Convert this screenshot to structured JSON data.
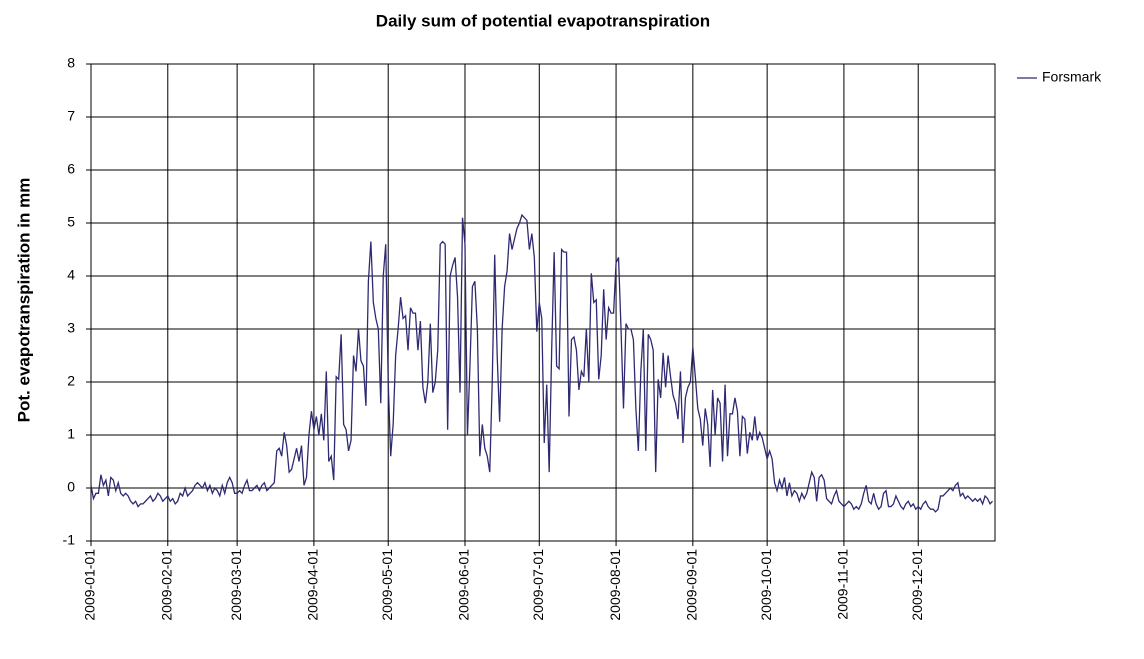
{
  "chart_data": {
    "type": "line",
    "title": "Daily sum of potential evapotranspiration",
    "y_label": "Pot. evapotranspiration in mm",
    "legend": "top-right",
    "grid": true,
    "xlim": [
      "2009-01-01",
      "2010-01-01"
    ],
    "xticks": [
      "2009-01-01",
      "2009-02-01",
      "2009-03-01",
      "2009-04-01",
      "2009-05-01",
      "2009-06-01",
      "2009-07-01",
      "2009-08-01",
      "2009-09-01",
      "2009-10-01",
      "2009-11-01",
      "2009-12-01"
    ],
    "ylim": [
      -1,
      8
    ],
    "yticks": [
      -1,
      0,
      1,
      2,
      3,
      4,
      5,
      6,
      7,
      8
    ],
    "x": [
      "2009-01-01",
      "2009-01-02",
      "2009-01-03",
      "2009-01-04",
      "2009-01-05",
      "2009-01-06",
      "2009-01-07",
      "2009-01-08",
      "2009-01-09",
      "2009-01-10",
      "2009-01-11",
      "2009-01-12",
      "2009-01-13",
      "2009-01-14",
      "2009-01-15",
      "2009-01-16",
      "2009-01-17",
      "2009-01-18",
      "2009-01-19",
      "2009-01-20",
      "2009-01-21",
      "2009-01-22",
      "2009-01-23",
      "2009-01-24",
      "2009-01-25",
      "2009-01-26",
      "2009-01-27",
      "2009-01-28",
      "2009-01-29",
      "2009-01-30",
      "2009-01-31",
      "2009-02-01",
      "2009-02-02",
      "2009-02-03",
      "2009-02-04",
      "2009-02-05",
      "2009-02-06",
      "2009-02-07",
      "2009-02-08",
      "2009-02-09",
      "2009-02-10",
      "2009-02-11",
      "2009-02-12",
      "2009-02-13",
      "2009-02-14",
      "2009-02-15",
      "2009-02-16",
      "2009-02-17",
      "2009-02-18",
      "2009-02-19",
      "2009-02-20",
      "2009-02-21",
      "2009-02-22",
      "2009-02-23",
      "2009-02-24",
      "2009-02-25",
      "2009-02-26",
      "2009-02-27",
      "2009-02-28",
      "2009-03-01",
      "2009-03-02",
      "2009-03-03",
      "2009-03-04",
      "2009-03-05",
      "2009-03-06",
      "2009-03-07",
      "2009-03-08",
      "2009-03-09",
      "2009-03-10",
      "2009-03-11",
      "2009-03-12",
      "2009-03-13",
      "2009-03-14",
      "2009-03-15",
      "2009-03-16",
      "2009-03-17",
      "2009-03-18",
      "2009-03-19",
      "2009-03-20",
      "2009-03-21",
      "2009-03-22",
      "2009-03-23",
      "2009-03-24",
      "2009-03-25",
      "2009-03-26",
      "2009-03-27",
      "2009-03-28",
      "2009-03-29",
      "2009-03-30",
      "2009-03-31",
      "2009-04-01",
      "2009-04-02",
      "2009-04-03",
      "2009-04-04",
      "2009-04-05",
      "2009-04-06",
      "2009-04-07",
      "2009-04-08",
      "2009-04-09",
      "2009-04-10",
      "2009-04-11",
      "2009-04-12",
      "2009-04-13",
      "2009-04-14",
      "2009-04-15",
      "2009-04-16",
      "2009-04-17",
      "2009-04-18",
      "2009-04-19",
      "2009-04-20",
      "2009-04-21",
      "2009-04-22",
      "2009-04-23",
      "2009-04-24",
      "2009-04-25",
      "2009-04-26",
      "2009-04-27",
      "2009-04-28",
      "2009-04-29",
      "2009-04-30",
      "2009-05-01",
      "2009-05-02",
      "2009-05-03",
      "2009-05-04",
      "2009-05-05",
      "2009-05-06",
      "2009-05-07",
      "2009-05-08",
      "2009-05-09",
      "2009-05-10",
      "2009-05-11",
      "2009-05-12",
      "2009-05-13",
      "2009-05-14",
      "2009-05-15",
      "2009-05-16",
      "2009-05-17",
      "2009-05-18",
      "2009-05-19",
      "2009-05-20",
      "2009-05-21",
      "2009-05-22",
      "2009-05-23",
      "2009-05-24",
      "2009-05-25",
      "2009-05-26",
      "2009-05-27",
      "2009-05-28",
      "2009-05-29",
      "2009-05-30",
      "2009-05-31",
      "2009-06-01",
      "2009-06-02",
      "2009-06-03",
      "2009-06-04",
      "2009-06-05",
      "2009-06-06",
      "2009-06-07",
      "2009-06-08",
      "2009-06-09",
      "2009-06-10",
      "2009-06-11",
      "2009-06-12",
      "2009-06-13",
      "2009-06-14",
      "2009-06-15",
      "2009-06-16",
      "2009-06-17",
      "2009-06-18",
      "2009-06-19",
      "2009-06-20",
      "2009-06-21",
      "2009-06-22",
      "2009-06-23",
      "2009-06-24",
      "2009-06-25",
      "2009-06-26",
      "2009-06-27",
      "2009-06-28",
      "2009-06-29",
      "2009-06-30",
      "2009-07-01",
      "2009-07-02",
      "2009-07-03",
      "2009-07-04",
      "2009-07-05",
      "2009-07-06",
      "2009-07-07",
      "2009-07-08",
      "2009-07-09",
      "2009-07-10",
      "2009-07-11",
      "2009-07-12",
      "2009-07-13",
      "2009-07-14",
      "2009-07-15",
      "2009-07-16",
      "2009-07-17",
      "2009-07-18",
      "2009-07-19",
      "2009-07-20",
      "2009-07-21",
      "2009-07-22",
      "2009-07-23",
      "2009-07-24",
      "2009-07-25",
      "2009-07-26",
      "2009-07-27",
      "2009-07-28",
      "2009-07-29",
      "2009-07-30",
      "2009-07-31",
      "2009-08-01",
      "2009-08-02",
      "2009-08-03",
      "2009-08-04",
      "2009-08-05",
      "2009-08-06",
      "2009-08-07",
      "2009-08-08",
      "2009-08-09",
      "2009-08-10",
      "2009-08-11",
      "2009-08-12",
      "2009-08-13",
      "2009-08-14",
      "2009-08-15",
      "2009-08-16",
      "2009-08-17",
      "2009-08-18",
      "2009-08-19",
      "2009-08-20",
      "2009-08-21",
      "2009-08-22",
      "2009-08-23",
      "2009-08-24",
      "2009-08-25",
      "2009-08-26",
      "2009-08-27",
      "2009-08-28",
      "2009-08-29",
      "2009-08-30",
      "2009-08-31",
      "2009-09-01",
      "2009-09-02",
      "2009-09-03",
      "2009-09-04",
      "2009-09-05",
      "2009-09-06",
      "2009-09-07",
      "2009-09-08",
      "2009-09-09",
      "2009-09-10",
      "2009-09-11",
      "2009-09-12",
      "2009-09-13",
      "2009-09-14",
      "2009-09-15",
      "2009-09-16",
      "2009-09-17",
      "2009-09-18",
      "2009-09-19",
      "2009-09-20",
      "2009-09-21",
      "2009-09-22",
      "2009-09-23",
      "2009-09-24",
      "2009-09-25",
      "2009-09-26",
      "2009-09-27",
      "2009-09-28",
      "2009-09-29",
      "2009-09-30",
      "2009-10-01",
      "2009-10-02",
      "2009-10-03",
      "2009-10-04",
      "2009-10-05",
      "2009-10-06",
      "2009-10-07",
      "2009-10-08",
      "2009-10-09",
      "2009-10-10",
      "2009-10-11",
      "2009-10-12",
      "2009-10-13",
      "2009-10-14",
      "2009-10-15",
      "2009-10-16",
      "2009-10-17",
      "2009-10-18",
      "2009-10-19",
      "2009-10-20",
      "2009-10-21",
      "2009-10-22",
      "2009-10-23",
      "2009-10-24",
      "2009-10-25",
      "2009-10-26",
      "2009-10-27",
      "2009-10-28",
      "2009-10-29",
      "2009-10-30",
      "2009-10-31",
      "2009-11-01",
      "2009-11-02",
      "2009-11-03",
      "2009-11-04",
      "2009-11-05",
      "2009-11-06",
      "2009-11-07",
      "2009-11-08",
      "2009-11-09",
      "2009-11-10",
      "2009-11-11",
      "2009-11-12",
      "2009-11-13",
      "2009-11-14",
      "2009-11-15",
      "2009-11-16",
      "2009-11-17",
      "2009-11-18",
      "2009-11-19",
      "2009-11-20",
      "2009-11-21",
      "2009-11-22",
      "2009-11-23",
      "2009-11-24",
      "2009-11-25",
      "2009-11-26",
      "2009-11-27",
      "2009-11-28",
      "2009-11-29",
      "2009-11-30",
      "2009-12-01",
      "2009-12-02",
      "2009-12-03",
      "2009-12-04",
      "2009-12-05",
      "2009-12-06",
      "2009-12-07",
      "2009-12-08",
      "2009-12-09",
      "2009-12-10",
      "2009-12-11",
      "2009-12-12",
      "2009-12-13",
      "2009-12-14",
      "2009-12-15",
      "2009-12-16",
      "2009-12-17",
      "2009-12-18",
      "2009-12-19",
      "2009-12-20",
      "2009-12-21",
      "2009-12-22",
      "2009-12-23",
      "2009-12-24",
      "2009-12-25",
      "2009-12-26",
      "2009-12-27",
      "2009-12-28",
      "2009-12-29",
      "2009-12-30",
      "2009-12-31"
    ],
    "series": [
      {
        "name": "Forsmark",
        "color": "#2e2a72",
        "values": [
          0.05,
          -0.2,
          -0.1,
          -0.1,
          0.25,
          0.05,
          0.15,
          -0.15,
          0.2,
          0.15,
          -0.05,
          0.1,
          -0.1,
          -0.15,
          -0.1,
          -0.15,
          -0.25,
          -0.3,
          -0.25,
          -0.35,
          -0.3,
          -0.3,
          -0.25,
          -0.2,
          -0.15,
          -0.25,
          -0.2,
          -0.1,
          -0.15,
          -0.25,
          -0.2,
          -0.15,
          -0.25,
          -0.2,
          -0.3,
          -0.25,
          -0.1,
          -0.15,
          0.0,
          -0.15,
          -0.1,
          -0.05,
          0.05,
          0.1,
          0.05,
          0.0,
          0.1,
          -0.05,
          0.05,
          -0.1,
          0.0,
          -0.05,
          -0.15,
          0.05,
          -0.1,
          0.1,
          0.2,
          0.1,
          -0.1,
          -0.1,
          -0.05,
          -0.1,
          0.05,
          0.15,
          -0.05,
          -0.05,
          0.0,
          0.05,
          -0.05,
          0.05,
          0.1,
          -0.05,
          0.0,
          0.05,
          0.1,
          0.7,
          0.75,
          0.6,
          1.05,
          0.8,
          0.3,
          0.35,
          0.55,
          0.75,
          0.5,
          0.8,
          0.05,
          0.2,
          1.0,
          1.45,
          1.1,
          1.35,
          1.0,
          1.4,
          0.9,
          2.2,
          0.5,
          0.6,
          0.15,
          2.1,
          2.05,
          2.9,
          1.2,
          1.1,
          0.7,
          0.9,
          2.5,
          2.2,
          3.0,
          2.4,
          2.3,
          1.55,
          3.9,
          4.65,
          3.5,
          3.2,
          3.0,
          1.6,
          4.0,
          4.6,
          2.0,
          0.6,
          1.2,
          2.5,
          3.0,
          3.6,
          3.2,
          3.25,
          2.6,
          3.4,
          3.3,
          3.3,
          2.6,
          3.15,
          1.9,
          1.6,
          2.0,
          3.1,
          1.8,
          2.0,
          2.6,
          4.6,
          4.65,
          4.6,
          1.1,
          4.0,
          4.2,
          4.35,
          3.6,
          1.8,
          5.1,
          4.6,
          1.0,
          2.3,
          3.8,
          3.9,
          3.0,
          0.6,
          1.2,
          0.75,
          0.6,
          0.3,
          2.0,
          4.4,
          2.5,
          1.25,
          3.0,
          3.8,
          4.1,
          4.8,
          4.5,
          4.7,
          4.9,
          5.0,
          5.15,
          5.1,
          5.05,
          4.5,
          4.8,
          4.35,
          2.95,
          3.5,
          3.2,
          0.85,
          1.95,
          0.3,
          2.6,
          4.45,
          2.3,
          2.25,
          4.5,
          4.45,
          4.45,
          1.35,
          2.8,
          2.85,
          2.6,
          1.85,
          2.2,
          2.1,
          3.0,
          2.0,
          4.05,
          3.5,
          3.55,
          2.05,
          2.5,
          3.75,
          2.8,
          3.4,
          3.3,
          3.3,
          4.25,
          4.35,
          3.0,
          1.5,
          3.1,
          3.0,
          3.0,
          2.8,
          1.5,
          0.7,
          2.2,
          3.0,
          0.7,
          2.9,
          2.8,
          2.6,
          0.3,
          2.05,
          1.7,
          2.55,
          1.9,
          2.5,
          2.1,
          1.75,
          1.6,
          1.3,
          2.2,
          0.85,
          1.7,
          1.9,
          2.0,
          2.65,
          2.1,
          1.5,
          1.3,
          0.8,
          1.5,
          1.2,
          0.4,
          1.85,
          1.0,
          1.7,
          1.6,
          0.5,
          1.95,
          0.6,
          1.4,
          1.4,
          1.7,
          1.45,
          0.6,
          1.35,
          1.3,
          0.65,
          1.05,
          0.9,
          1.35,
          0.9,
          1.05,
          0.95,
          0.75,
          0.55,
          0.7,
          0.55,
          0.1,
          -0.05,
          0.15,
          0.0,
          0.2,
          -0.15,
          0.1,
          -0.15,
          -0.05,
          -0.1,
          -0.25,
          -0.1,
          -0.2,
          -0.1,
          0.1,
          0.3,
          0.2,
          -0.25,
          0.2,
          0.25,
          0.15,
          -0.2,
          -0.25,
          -0.3,
          -0.15,
          -0.05,
          -0.25,
          -0.3,
          -0.35,
          -0.3,
          -0.25,
          -0.3,
          -0.4,
          -0.35,
          -0.4,
          -0.3,
          -0.1,
          0.05,
          -0.25,
          -0.3,
          -0.1,
          -0.3,
          -0.4,
          -0.35,
          -0.1,
          -0.05,
          -0.35,
          -0.35,
          -0.3,
          -0.15,
          -0.25,
          -0.35,
          -0.4,
          -0.3,
          -0.25,
          -0.35,
          -0.3,
          -0.4,
          -0.35,
          -0.4,
          -0.3,
          -0.25,
          -0.35,
          -0.4,
          -0.4,
          -0.45,
          -0.4,
          -0.15,
          -0.15,
          -0.1,
          -0.05,
          0.0,
          -0.05,
          0.05,
          0.1,
          -0.15,
          -0.1,
          -0.2,
          -0.15,
          -0.2,
          -0.25,
          -0.2,
          -0.25,
          -0.2,
          -0.3,
          -0.15,
          -0.2,
          -0.3,
          -0.25
        ]
      }
    ]
  }
}
